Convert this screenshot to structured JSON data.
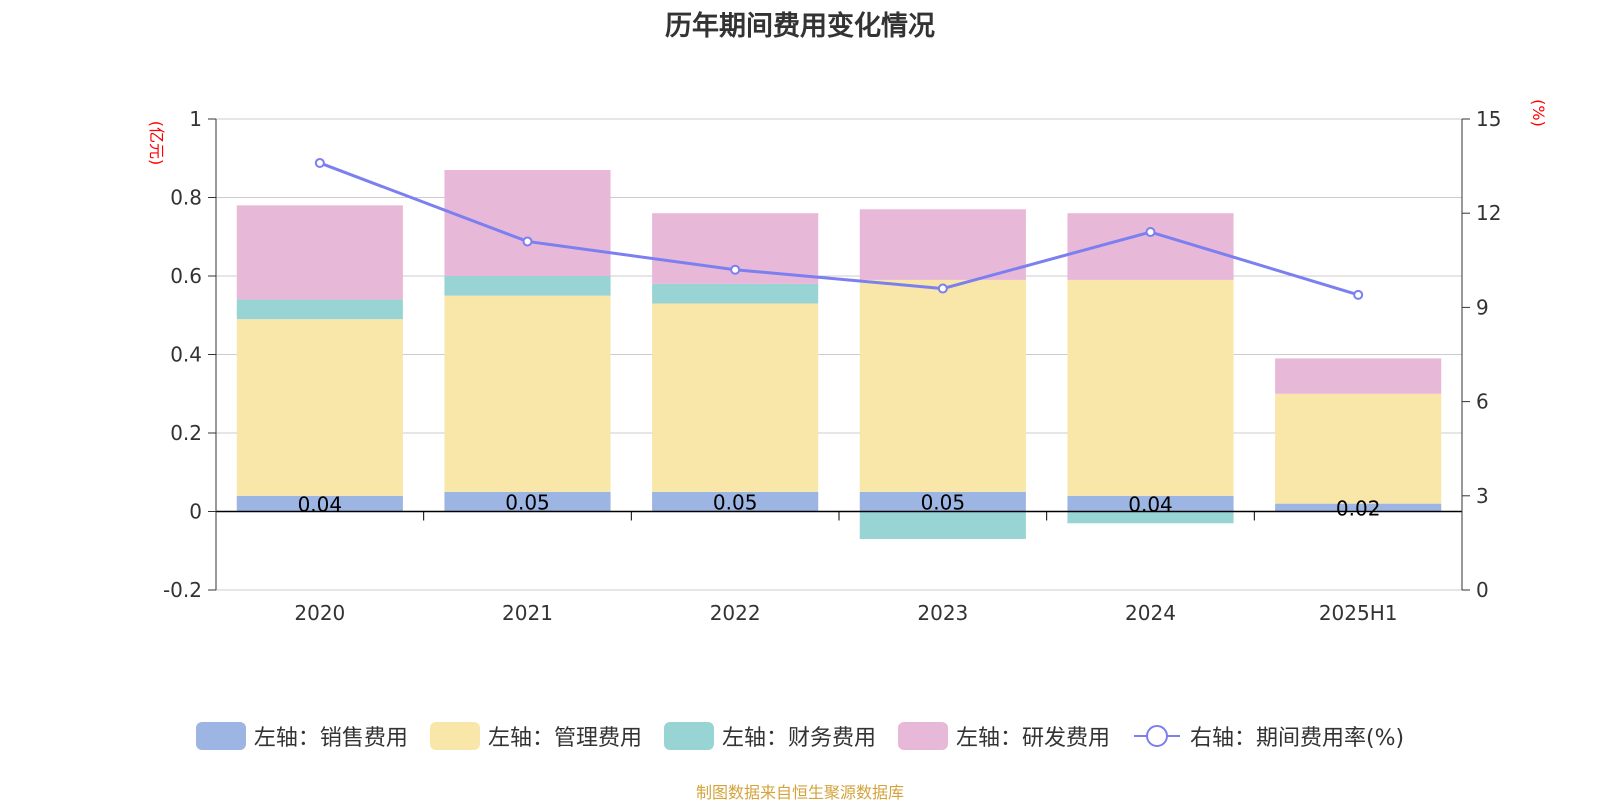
{
  "chart_data": {
    "type": "bar",
    "title": "历年期间费用变化情况",
    "categories": [
      "2020",
      "2021",
      "2022",
      "2023",
      "2024",
      "2025H1"
    ],
    "left_axis": {
      "unit": "(亿元)",
      "ylim": [
        -0.2,
        1
      ],
      "ticks": [
        "1",
        "0.8",
        "0.6",
        "0.4",
        "0.2",
        "0",
        "-0.2"
      ]
    },
    "right_axis": {
      "unit": "(%)",
      "ylim": [
        0,
        15
      ],
      "ticks": [
        "15",
        "12",
        "9",
        "6",
        "3",
        "0"
      ]
    },
    "series": [
      {
        "name": "左轴：销售费用",
        "type": "bar",
        "axis": "left",
        "color": "#9db5e3",
        "values": [
          0.04,
          0.05,
          0.05,
          0.05,
          0.04,
          0.02
        ],
        "labels": [
          "0.04",
          "0.05",
          "0.05",
          "0.05",
          "0.04",
          "0.02"
        ]
      },
      {
        "name": "左轴：管理费用",
        "type": "bar",
        "axis": "left",
        "color": "#f8e7a8",
        "values": [
          0.45,
          0.5,
          0.48,
          0.54,
          0.55,
          0.28
        ]
      },
      {
        "name": "左轴：财务费用",
        "type": "bar",
        "axis": "left",
        "color": "#98d4d4",
        "values": [
          0.05,
          0.05,
          0.05,
          -0.07,
          -0.03,
          0.0
        ]
      },
      {
        "name": "左轴：研发费用",
        "type": "bar",
        "axis": "left",
        "color": "#e8b8d8",
        "values": [
          0.24,
          0.27,
          0.18,
          0.18,
          0.17,
          0.09
        ]
      },
      {
        "name": "右轴：期间费用率(%)",
        "type": "line",
        "axis": "right",
        "color": "#7b7ff0",
        "values": [
          13.6,
          11.1,
          10.2,
          9.6,
          11.4,
          9.4
        ]
      }
    ],
    "grid": true,
    "legend_position": "bottom"
  },
  "source_note": "制图数据来自恒生聚源数据库"
}
